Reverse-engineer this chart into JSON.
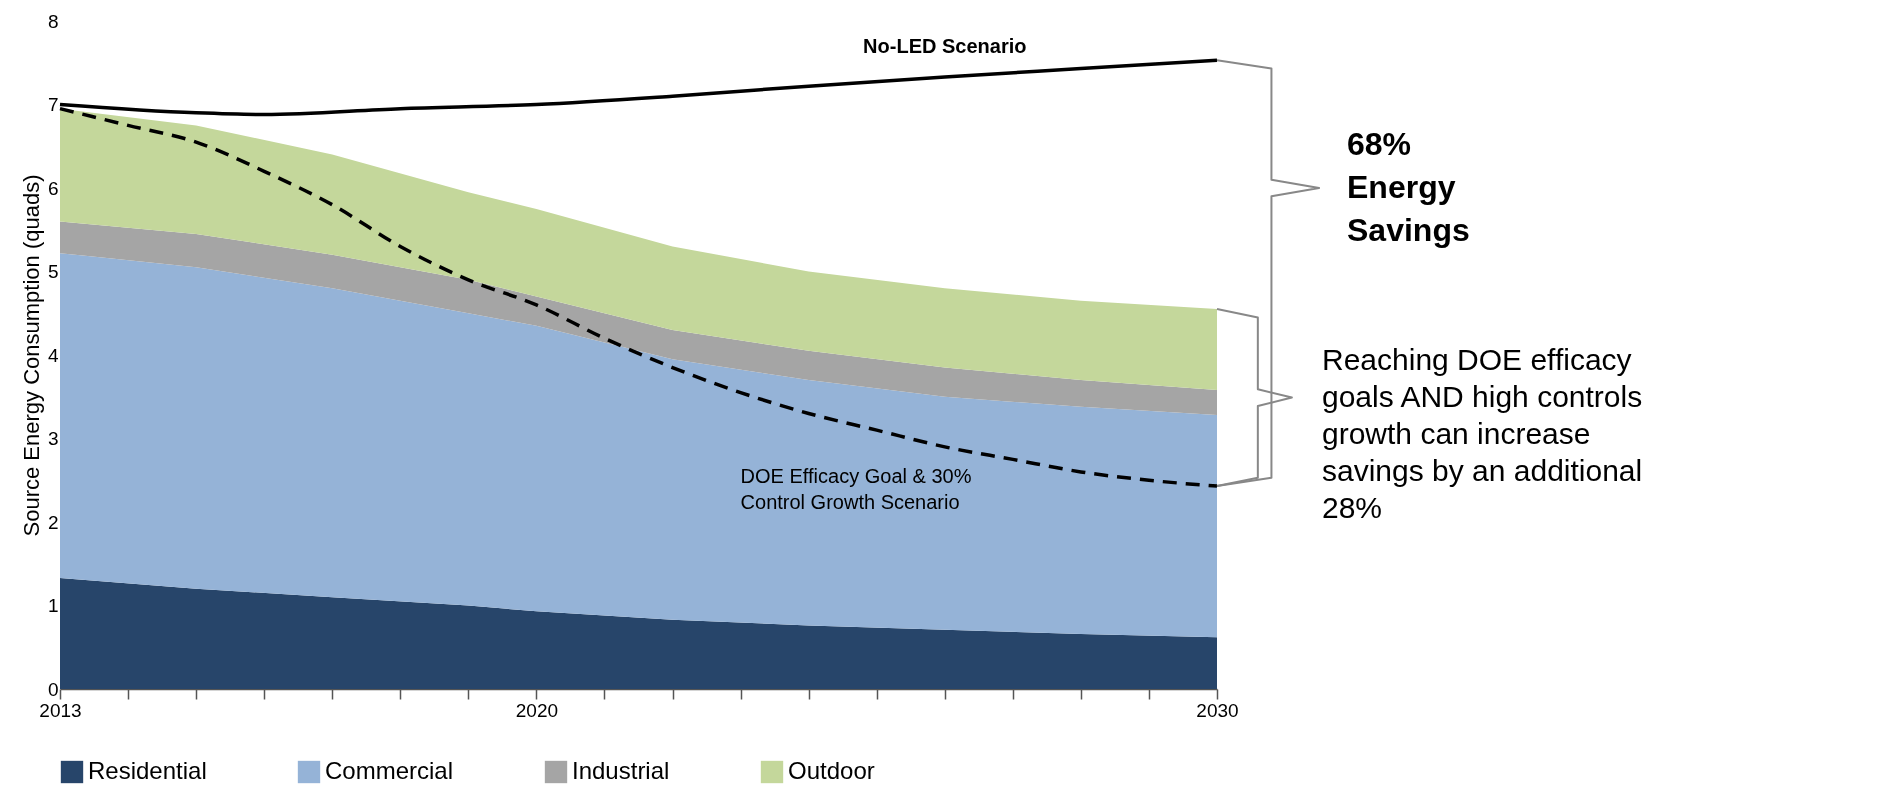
{
  "chart_data": {
    "type": "area",
    "stacked": true,
    "ylabel": "Source Energy Consumption (quads)",
    "x": [
      2013,
      2015,
      2017,
      2019,
      2020,
      2022,
      2024,
      2026,
      2028,
      2030
    ],
    "xlim": [
      2013,
      2030
    ],
    "xticks": [
      {
        "value": 2013,
        "label": "2013"
      },
      {
        "value": 2014,
        "label": null
      },
      {
        "value": 2015,
        "label": null
      },
      {
        "value": 2016,
        "label": null
      },
      {
        "value": 2017,
        "label": null
      },
      {
        "value": 2018,
        "label": null
      },
      {
        "value": 2019,
        "label": null
      },
      {
        "value": 2020,
        "label": "2020"
      },
      {
        "value": 2021,
        "label": null
      },
      {
        "value": 2022,
        "label": null
      },
      {
        "value": 2023,
        "label": null
      },
      {
        "value": 2024,
        "label": null
      },
      {
        "value": 2025,
        "label": null
      },
      {
        "value": 2026,
        "label": null
      },
      {
        "value": 2027,
        "label": null
      },
      {
        "value": 2028,
        "label": null
      },
      {
        "value": 2029,
        "label": null
      },
      {
        "value": 2030,
        "label": "2030"
      }
    ],
    "ylim": [
      0,
      8
    ],
    "yticks": [
      0,
      1,
      2,
      3,
      4,
      5,
      6,
      7,
      8
    ],
    "grid": false,
    "legend": "bottom",
    "series": [
      {
        "name": "Residential",
        "color": "#27456a",
        "values": [
          1.33,
          1.2,
          1.1,
          1.0,
          0.93,
          0.83,
          0.76,
          0.71,
          0.66,
          0.62
        ]
      },
      {
        "name": "Commercial",
        "color": "#95b3d7",
        "values": [
          3.89,
          3.85,
          3.7,
          3.5,
          3.42,
          3.12,
          2.94,
          2.79,
          2.72,
          2.66
        ]
      },
      {
        "name": "Industrial",
        "color": "#a5a5a5",
        "values": [
          0.38,
          0.4,
          0.4,
          0.4,
          0.35,
          0.35,
          0.35,
          0.35,
          0.32,
          0.3
        ]
      },
      {
        "name": "Outdoor",
        "color": "#c4d79b",
        "values": [
          1.35,
          1.3,
          1.2,
          1.05,
          1.05,
          1.0,
          0.95,
          0.95,
          0.95,
          0.97
        ]
      },
      {
        "name": "No-LED Scenario",
        "type": "line",
        "line_style": "solid",
        "color": "#000000",
        "x": [
          2013,
          2015,
          2016,
          2018,
          2020,
          2022,
          2024,
          2026,
          2028,
          2030
        ],
        "values": [
          7.0,
          6.9,
          6.88,
          6.95,
          7.0,
          7.1,
          7.22,
          7.33,
          7.43,
          7.53
        ]
      },
      {
        "name": "DOE Efficacy Goal & 30% Control Growth Scenario",
        "type": "line",
        "line_style": "dashed",
        "color": "#000000",
        "x": [
          2013,
          2014,
          2015,
          2016,
          2017,
          2018,
          2019,
          2020,
          2021,
          2022,
          2023,
          2024,
          2025,
          2026,
          2027,
          2028,
          2029,
          2030
        ],
        "values": [
          6.95,
          6.75,
          6.55,
          6.2,
          5.8,
          5.3,
          4.9,
          4.6,
          4.2,
          3.85,
          3.55,
          3.3,
          3.1,
          2.9,
          2.75,
          2.6,
          2.5,
          2.43
        ]
      }
    ],
    "annotations": [
      "68% Energy Savings",
      "Reaching DOE efficacy goals AND high controls growth can increase savings by an additional 28%"
    ]
  }
}
